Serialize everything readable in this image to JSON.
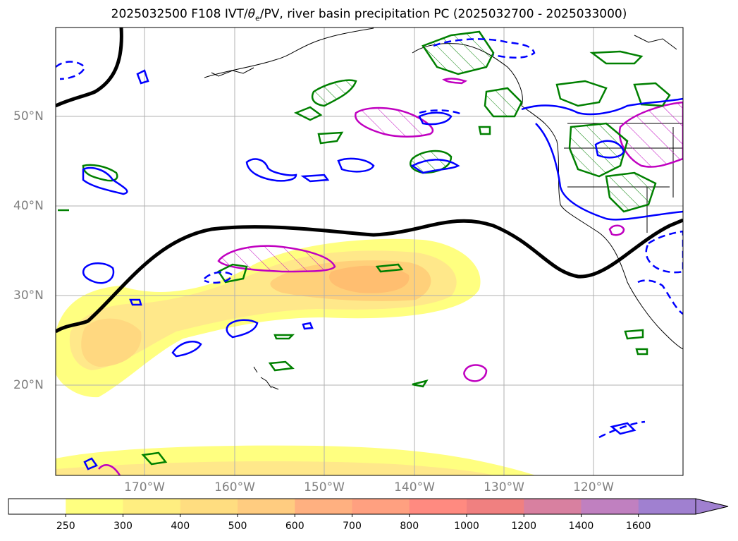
{
  "title": {
    "prefix": "2025032500 F108 IVT/",
    "theta_symbol": "θ",
    "theta_sub": "e",
    "suffix": "/PV, river basin precipitation PC (2025032700 - 2025033000)"
  },
  "lat_labels": [
    "50°N",
    "40°N",
    "30°N",
    "20°N"
  ],
  "lon_labels": [
    "170°W",
    "160°W",
    "150°W",
    "140°W",
    "130°W",
    "120°W"
  ],
  "colorbar": {
    "ticks": [
      "250",
      "300",
      "400",
      "500",
      "600",
      "700",
      "800",
      "1000",
      "1200",
      "1400",
      "1600"
    ],
    "colors": [
      "#ffffff",
      "#ffff80",
      "#ffee80",
      "#ffdd80",
      "#ffcc80",
      "#ffb080",
      "#ffa080",
      "#ff8a80",
      "#f08080",
      "#d880a0",
      "#c080c0",
      "#a080d0"
    ],
    "extend": "max"
  },
  "colors": {
    "ivt_fill_light": "#ffff80",
    "ivt_fill_mid": "#ffe080",
    "ivt_fill_core": "#ffc070",
    "pv_contour": "#000000",
    "theta_positive": "#008000",
    "theta_negative": "#0000ff",
    "precip_pc": "#c000c0",
    "coast": "#000000",
    "grid": "#b0b0b0",
    "axis_label": "#808080"
  },
  "icons": {
    "colorbar_extend": "triangle-arrow"
  }
}
